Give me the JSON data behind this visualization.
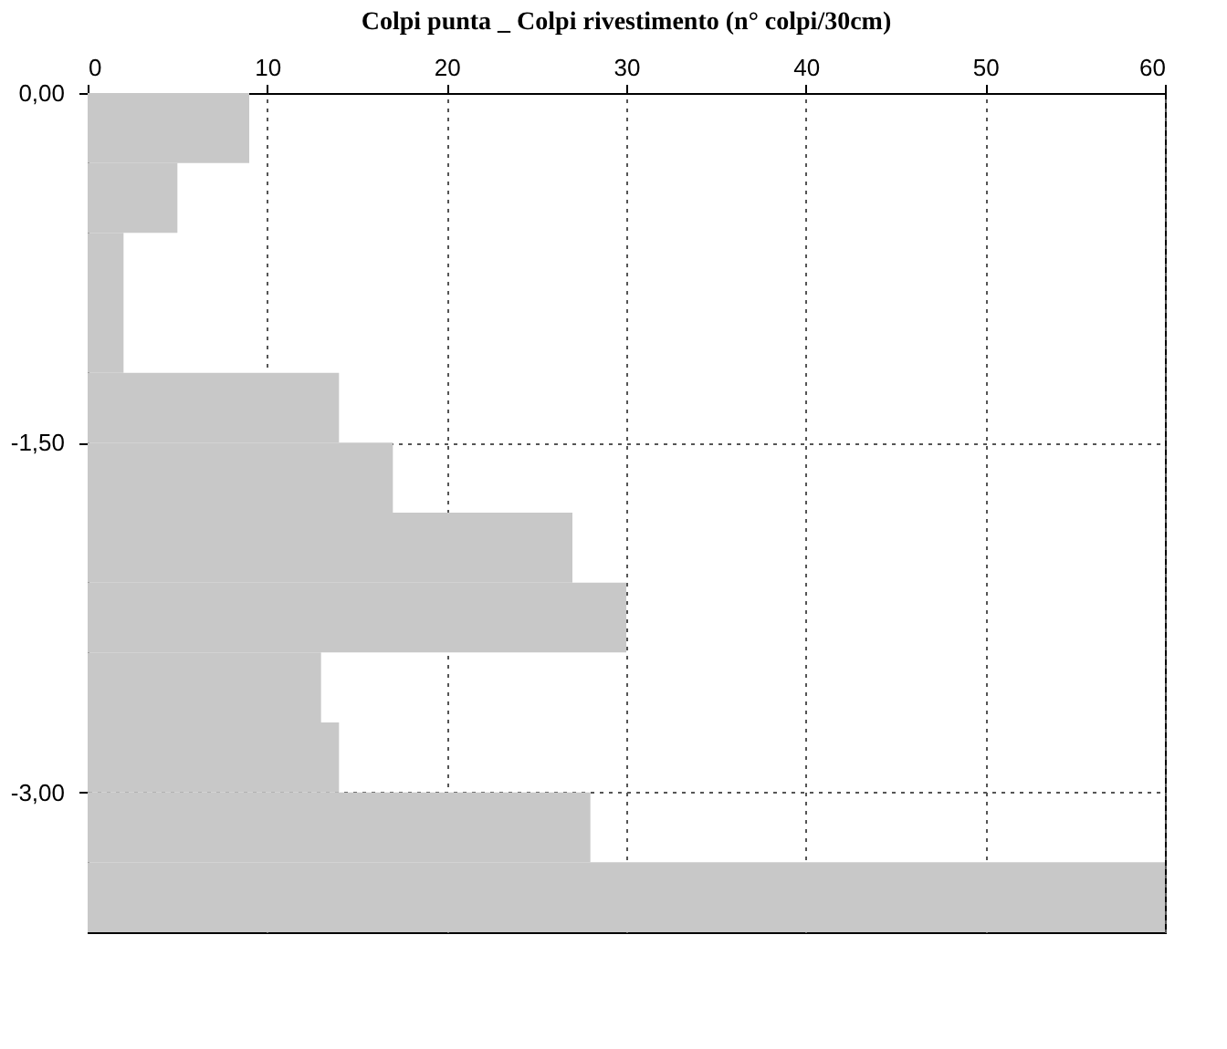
{
  "chart_data": {
    "type": "histogram",
    "orientation": "horizontal",
    "title": "Colpi punta _ Colpi rivestimento (n° colpi/30cm)",
    "bins": [
      0,
      -0.3,
      -0.6,
      -0.9,
      -1.2,
      -1.5,
      -1.8,
      -2.1,
      -2.4,
      -2.7,
      -3.0,
      -3.3,
      -3.6
    ],
    "values": [
      9,
      5,
      2,
      2,
      14,
      17,
      27,
      30,
      13,
      14,
      28,
      60
    ],
    "color": "#c8c8c8",
    "xlim": [
      0,
      60
    ],
    "xticks": [
      0,
      10,
      20,
      30,
      40,
      50,
      60
    ],
    "ylim": [
      -3.6,
      0
    ],
    "yticks": [
      {
        "value": 0,
        "label": "0,00"
      },
      {
        "value": -1.5,
        "label": "-1,50"
      },
      {
        "value": -3.0,
        "label": "-3,00"
      }
    ],
    "grid": true,
    "line_style": "dotted"
  }
}
